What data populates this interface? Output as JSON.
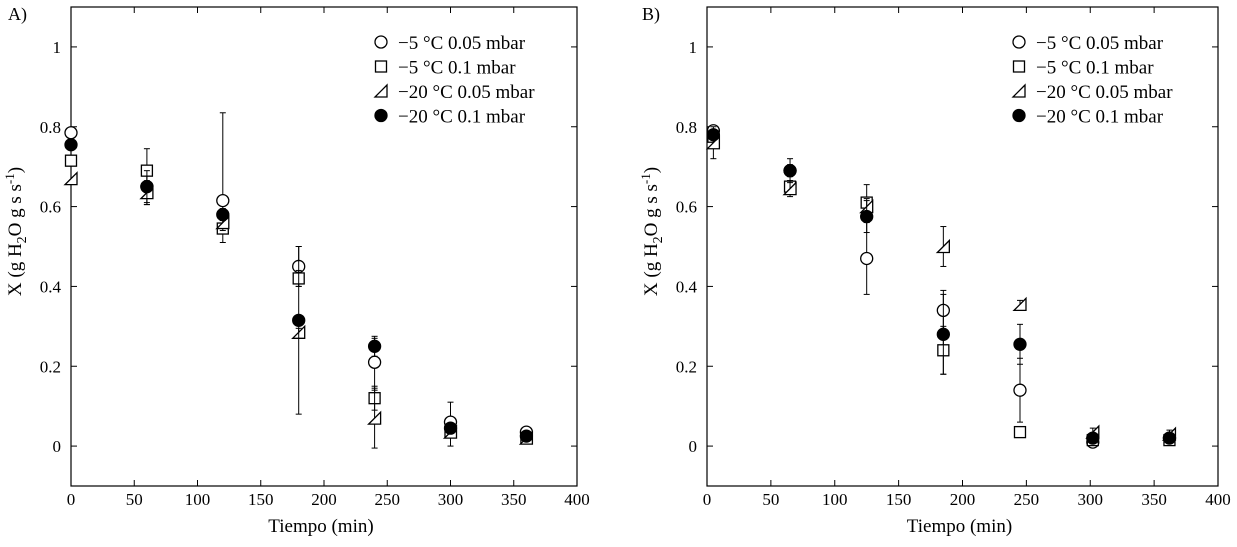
{
  "chart_data": [
    {
      "type": "scatter",
      "panel_label": "A)",
      "xlabel": "Tiempo (min)",
      "ylabel": "X (g H2O g s s-1)",
      "ylabel_parts": {
        "prefix": "X (g H",
        "sub": "2",
        "middle": "O g s s",
        "sup": "-1",
        "suffix": ")"
      },
      "xlim": [
        0,
        400
      ],
      "ylim": [
        -0.1,
        1.1
      ],
      "xticks": [
        "0",
        "50",
        "100",
        "150",
        "200",
        "250",
        "300",
        "350",
        "400"
      ],
      "yticks": [
        "0",
        "0.2",
        "0.4",
        "0.6",
        "0.8",
        "1"
      ],
      "grid": false,
      "legend_position": "top-right",
      "series": [
        {
          "name": "−5 °C 0.05 mbar",
          "marker": "circle-open",
          "points": [
            [
              0,
              0.785,
              0,
              0
            ],
            [
              60,
              0.65,
              0.045,
              0.045
            ],
            [
              120,
              0.615,
              0.105,
              0.22
            ],
            [
              180,
              0.45,
              0.05,
              0.05
            ],
            [
              240,
              0.21,
              0.07,
              0.06
            ],
            [
              300,
              0.06,
              0.06,
              0.05
            ],
            [
              360,
              0.035,
              0.01,
              0.01
            ]
          ]
        },
        {
          "name": "−5 °C 0.1 mbar",
          "marker": "square-open",
          "points": [
            [
              0,
              0.715,
              0,
              0
            ],
            [
              60,
              0.69,
              0.055,
              0.055
            ],
            [
              120,
              0.545,
              0.01,
              0.01
            ],
            [
              180,
              0.42,
              0.02,
              0.02
            ],
            [
              240,
              0.12,
              0.03,
              0.03
            ],
            [
              300,
              0.035,
              0.01,
              0.01
            ],
            [
              360,
              0.02,
              0.01,
              0.01
            ]
          ]
        },
        {
          "name": "−20 °C 0.05 mbar",
          "marker": "triangle-open",
          "points": [
            [
              0,
              0.67,
              0,
              0
            ],
            [
              60,
              0.635,
              0.03,
              0.03
            ],
            [
              120,
              0.56,
              0.02,
              0.02
            ],
            [
              180,
              0.285,
              0.01,
              0.01
            ],
            [
              240,
              0.07,
              0.075,
              0.075
            ],
            [
              300,
              0.035,
              0.01,
              0.01
            ],
            [
              360,
              0.02,
              0.01,
              0.01
            ]
          ]
        },
        {
          "name": "−20 °C 0.1 mbar",
          "marker": "circle-filled",
          "points": [
            [
              0,
              0.755,
              0,
              0
            ],
            [
              60,
              0.65,
              0.04,
              0.04
            ],
            [
              120,
              0.58,
              0.015,
              0.015
            ],
            [
              180,
              0.315,
              0.235,
              0.185
            ],
            [
              240,
              0.25,
              0.025,
              0.025
            ],
            [
              300,
              0.045,
              0.01,
              0.01
            ],
            [
              360,
              0.025,
              0.01,
              0.01
            ]
          ]
        }
      ]
    },
    {
      "type": "scatter",
      "panel_label": "B)",
      "xlabel": "Tiempo (min)",
      "ylabel": "X (g H2O g s s-1)",
      "ylabel_parts": {
        "prefix": "X (g H",
        "sub": "2",
        "middle": "O g s s",
        "sup": "-1",
        "suffix": ")"
      },
      "xlim": [
        0,
        400
      ],
      "ylim": [
        -0.1,
        1.1
      ],
      "xticks": [
        "0",
        "50",
        "100",
        "150",
        "200",
        "250",
        "300",
        "350",
        "400"
      ],
      "yticks": [
        "0",
        "0.2",
        "0.4",
        "0.6",
        "0.8",
        "1"
      ],
      "grid": false,
      "legend_position": "top-right",
      "series": [
        {
          "name": "−5 °C 0.05 mbar",
          "marker": "circle-open",
          "points": [
            [
              5,
              0.79,
              0.01,
              0.01
            ],
            [
              65,
              0.69,
              0.015,
              0.015
            ],
            [
              125,
              0.47,
              0.09,
              0.09
            ],
            [
              185,
              0.34,
              0.05,
              0.05
            ],
            [
              245,
              0.14,
              0.08,
              0.08
            ],
            [
              302,
              0.01,
              0.01,
              0.01
            ],
            [
              362,
              0.02,
              0.01,
              0.01
            ]
          ]
        },
        {
          "name": "−5 °C 0.1 mbar",
          "marker": "square-open",
          "points": [
            [
              5,
              0.775,
              0.01,
              0.01
            ],
            [
              65,
              0.65,
              0.015,
              0.015
            ],
            [
              125,
              0.61,
              0.045,
              0.045
            ],
            [
              185,
              0.24,
              0.06,
              0.06
            ],
            [
              245,
              0.035,
              0.01,
              0.01
            ],
            [
              302,
              0.015,
              0.01,
              0.01
            ],
            [
              362,
              0.015,
              0.01,
              0.01
            ]
          ]
        },
        {
          "name": "−20 °C 0.05 mbar",
          "marker": "triangle-open",
          "points": [
            [
              5,
              0.76,
              0.04,
              0.04
            ],
            [
              65,
              0.645,
              0.02,
              0.02
            ],
            [
              125,
              0.6,
              0.02,
              0.02
            ],
            [
              185,
              0.5,
              0.05,
              0.05
            ],
            [
              245,
              0.355,
              0.01,
              0.01
            ],
            [
              302,
              0.035,
              0.01,
              0.01
            ],
            [
              362,
              0.03,
              0.01,
              0.01
            ]
          ]
        },
        {
          "name": "−20 °C 0.1 mbar",
          "marker": "circle-filled",
          "points": [
            [
              5,
              0.78,
              0.01,
              0.01
            ],
            [
              65,
              0.69,
              0.03,
              0.03
            ],
            [
              125,
              0.575,
              0.04,
              0.04
            ],
            [
              185,
              0.28,
              0.1,
              0.1
            ],
            [
              245,
              0.255,
              0.05,
              0.05
            ],
            [
              302,
              0.02,
              0.01,
              0.01
            ],
            [
              362,
              0.02,
              0.01,
              0.01
            ]
          ]
        }
      ]
    }
  ]
}
